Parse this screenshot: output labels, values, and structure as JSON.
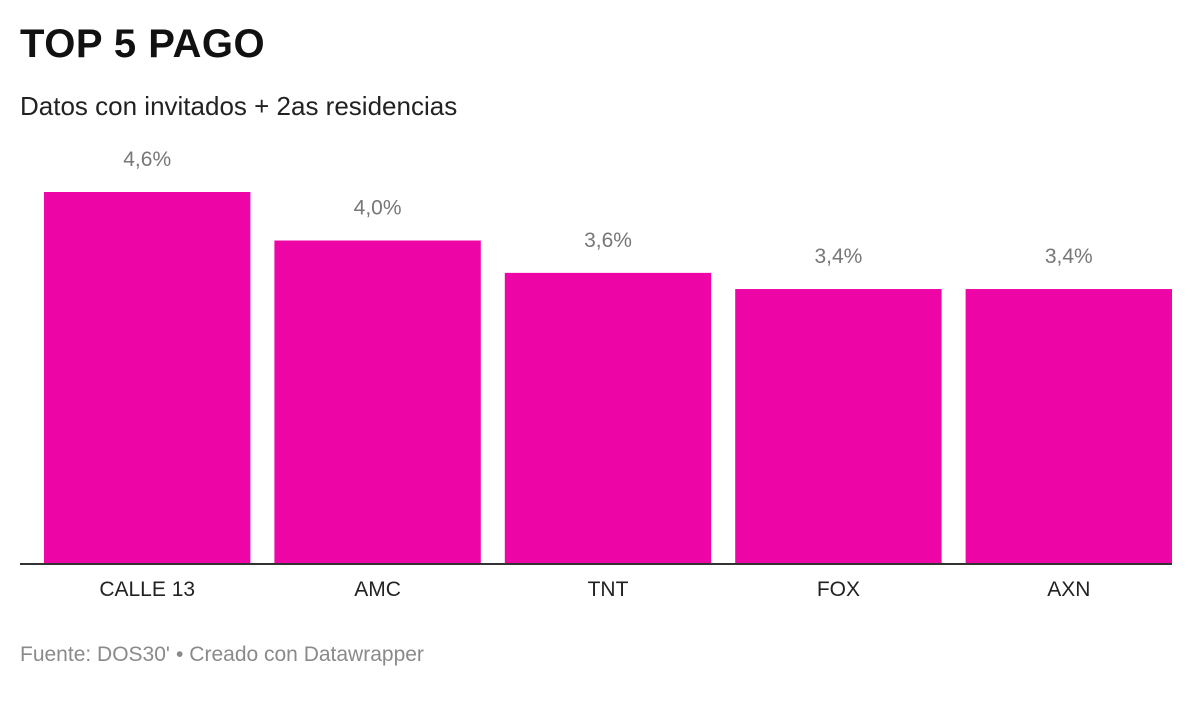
{
  "title": "TOP 5 PAGO",
  "subtitle": "Datos con invitados + 2as residencias",
  "footer": {
    "source": "Fuente: DOS30'",
    "separator": "•",
    "credit": "Creado con Datawrapper"
  },
  "colors": {
    "bar": "#ee05a6",
    "value_label": "#777777",
    "axis": "#333333",
    "category_label": "#222222"
  },
  "chart_data": {
    "type": "bar",
    "categories": [
      "CALLE 13",
      "AMC",
      "TNT",
      "FOX",
      "AXN"
    ],
    "values": [
      4.6,
      4.0,
      3.6,
      3.4,
      3.4
    ],
    "value_labels": [
      "4,6%",
      "4,0%",
      "3,6%",
      "3,4%",
      "3,4%"
    ],
    "title": "TOP 5 PAGO",
    "subtitle": "Datos con invitados + 2as residencias",
    "ylim": [
      0,
      4.6
    ],
    "grid": false,
    "legend": "none"
  }
}
